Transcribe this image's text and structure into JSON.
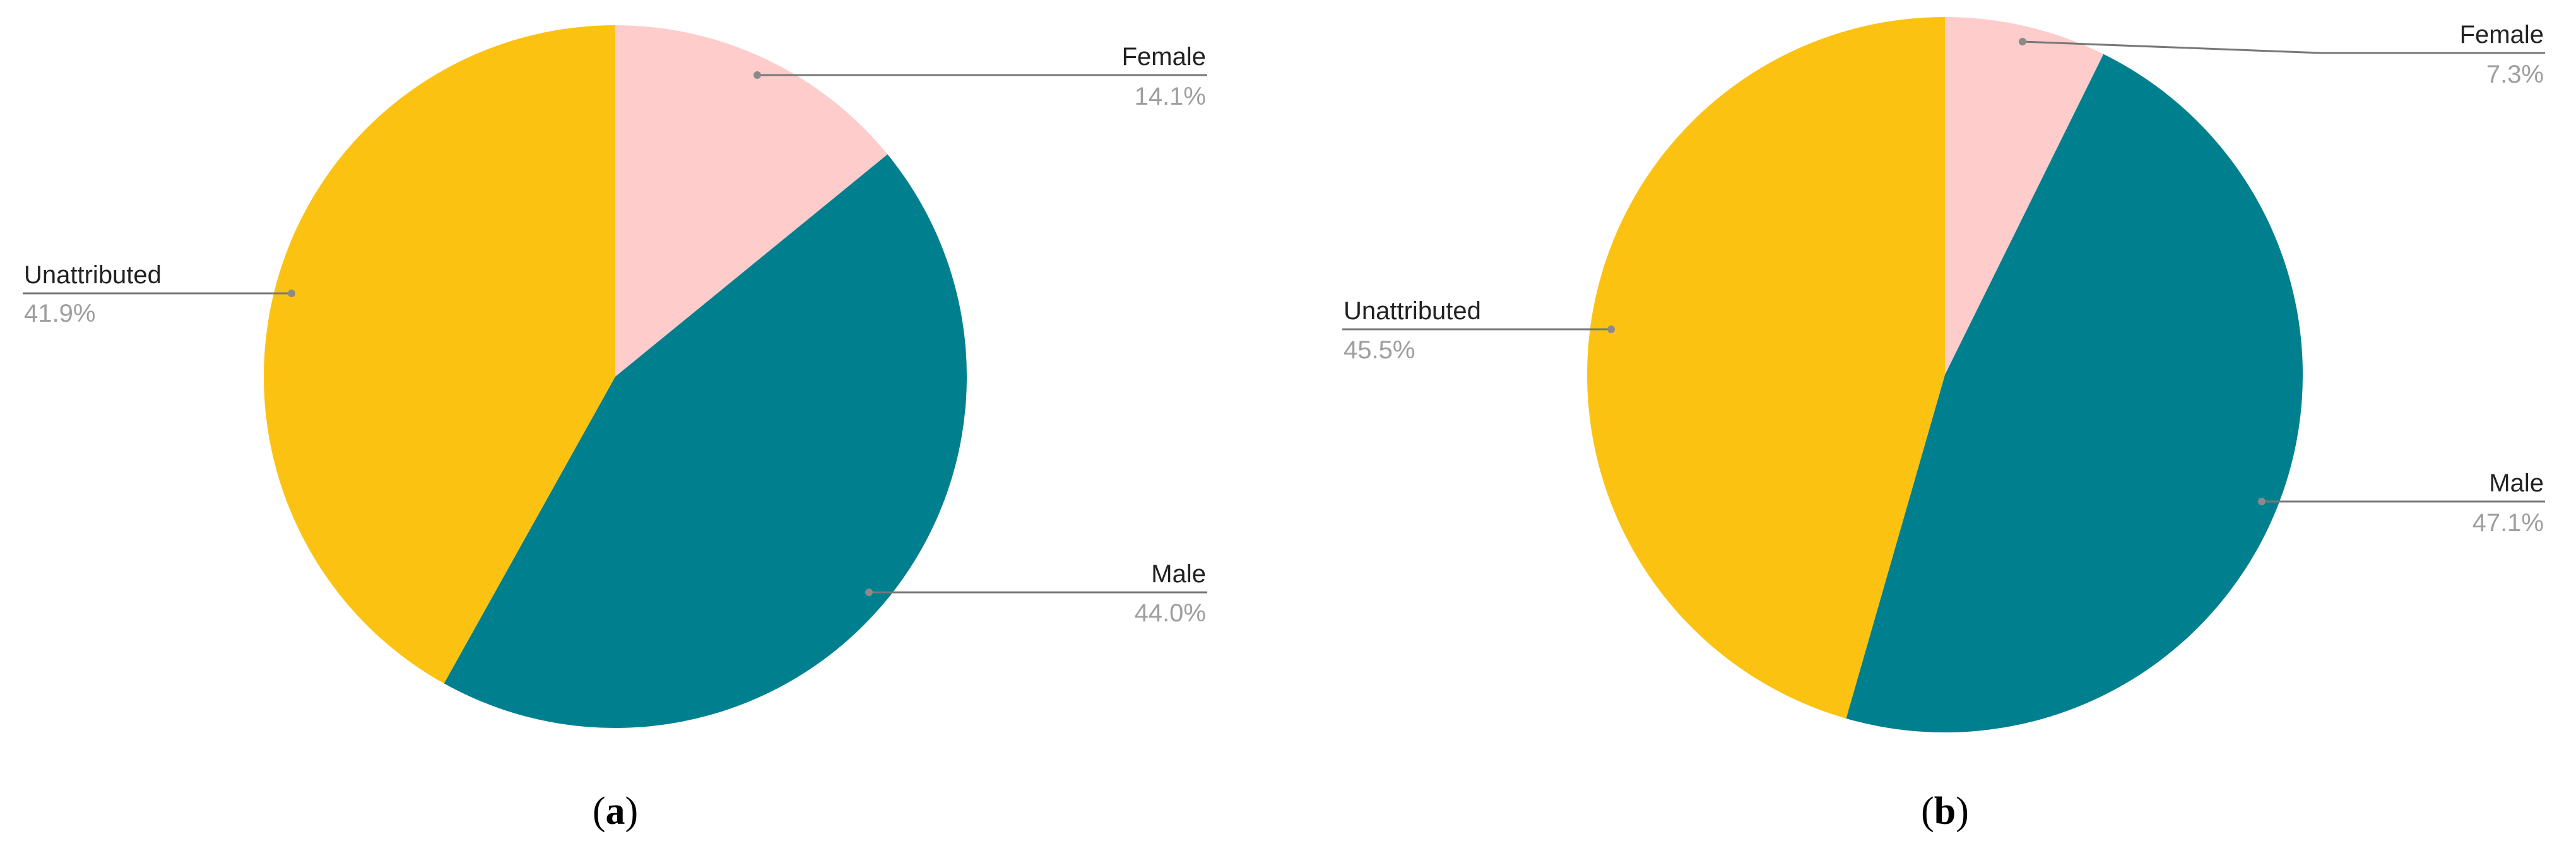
{
  "chart_data": [
    {
      "type": "pie",
      "caption": "(a)",
      "caption_bold": "a",
      "slices": [
        {
          "label": "Female",
          "value": 14.1,
          "value_label": "14.1%",
          "color": "#ffcccc"
        },
        {
          "label": "Male",
          "value": 44.0,
          "value_label": "44.0%",
          "color": "#00808e"
        },
        {
          "label": "Unattributed",
          "value": 41.9,
          "value_label": "41.9%",
          "color": "#fcc212"
        }
      ],
      "start_angle_deg": 0,
      "direction": "clockwise"
    },
    {
      "type": "pie",
      "caption": "(b)",
      "caption_bold": "b",
      "slices": [
        {
          "label": "Female",
          "value": 7.3,
          "value_label": "7.3%",
          "color": "#ffcccc"
        },
        {
          "label": "Male",
          "value": 47.1,
          "value_label": "47.1%",
          "color": "#00808e"
        },
        {
          "label": "Unattributed",
          "value": 45.5,
          "value_label": "45.5%",
          "color": "#fcc212"
        }
      ],
      "start_angle_deg": 0,
      "direction": "clockwise"
    }
  ]
}
